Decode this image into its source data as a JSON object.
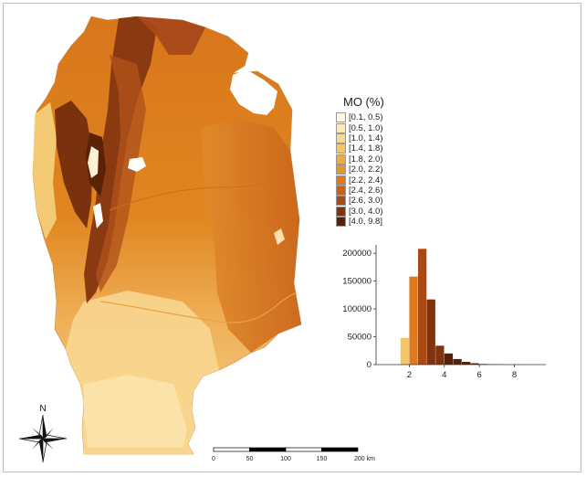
{
  "legend": {
    "title": "MO (%)",
    "classes": [
      {
        "label": "[0.1, 0.5)",
        "color": "#fff6dc"
      },
      {
        "label": "[0.5, 1.0)",
        "color": "#fde9b1"
      },
      {
        "label": "[1.0, 1.4)",
        "color": "#f9d98b"
      },
      {
        "label": "[1.4, 1.8)",
        "color": "#f6c567"
      },
      {
        "label": "[1.8, 2.0)",
        "color": "#f2a945"
      },
      {
        "label": "[2.0, 2.2)",
        "color": "#ea9430"
      },
      {
        "label": "[2.2, 2.4)",
        "color": "#dc7a1d"
      },
      {
        "label": "[2.4, 2.6)",
        "color": "#c8621a"
      },
      {
        "label": "[2.6, 3.0)",
        "color": "#a94a14"
      },
      {
        "label": "[3.0, 4.0)",
        "color": "#7f330f"
      },
      {
        "label": "[4.0, 9.8]",
        "color": "#552107"
      }
    ]
  },
  "chart_data": {
    "type": "bar",
    "bins": [
      {
        "x0": 0.1,
        "x1": 0.5,
        "value": 0
      },
      {
        "x0": 0.5,
        "x1": 1.0,
        "value": 0
      },
      {
        "x0": 1.0,
        "x1": 1.5,
        "value": 0
      },
      {
        "x0": 1.5,
        "x1": 2.0,
        "value": 48000
      },
      {
        "x0": 2.0,
        "x1": 2.5,
        "value": 158000
      },
      {
        "x0": 2.5,
        "x1": 3.0,
        "value": 208000
      },
      {
        "x0": 3.0,
        "x1": 3.5,
        "value": 117000
      },
      {
        "x0": 3.5,
        "x1": 4.0,
        "value": 34000
      },
      {
        "x0": 4.0,
        "x1": 4.5,
        "value": 20000
      },
      {
        "x0": 4.5,
        "x1": 5.0,
        "value": 10000
      },
      {
        "x0": 5.0,
        "x1": 5.5,
        "value": 5000
      },
      {
        "x0": 5.5,
        "x1": 6.0,
        "value": 2500
      },
      {
        "x0": 6.0,
        "x1": 6.5,
        "value": 1200
      },
      {
        "x0": 6.5,
        "x1": 7.0,
        "value": 600
      },
      {
        "x0": 7.0,
        "x1": 7.5,
        "value": 300
      },
      {
        "x0": 7.5,
        "x1": 8.0,
        "value": 200
      },
      {
        "x0": 8.0,
        "x1": 8.5,
        "value": 100
      },
      {
        "x0": 8.5,
        "x1": 9.0,
        "value": 60
      },
      {
        "x0": 9.0,
        "x1": 9.5,
        "value": 30
      }
    ],
    "xticks": [
      2,
      4,
      6,
      8
    ],
    "yticks": [
      0,
      50000,
      100000,
      150000,
      200000
    ],
    "xlim": [
      0.1,
      9.8
    ],
    "ylim": [
      0,
      215000
    ],
    "title": "",
    "xlabel": "",
    "ylabel": ""
  },
  "scalebar": {
    "ticks": [
      "0",
      "50",
      "100",
      "150",
      "200 km"
    ]
  },
  "north_arrow": {
    "label": "N"
  }
}
